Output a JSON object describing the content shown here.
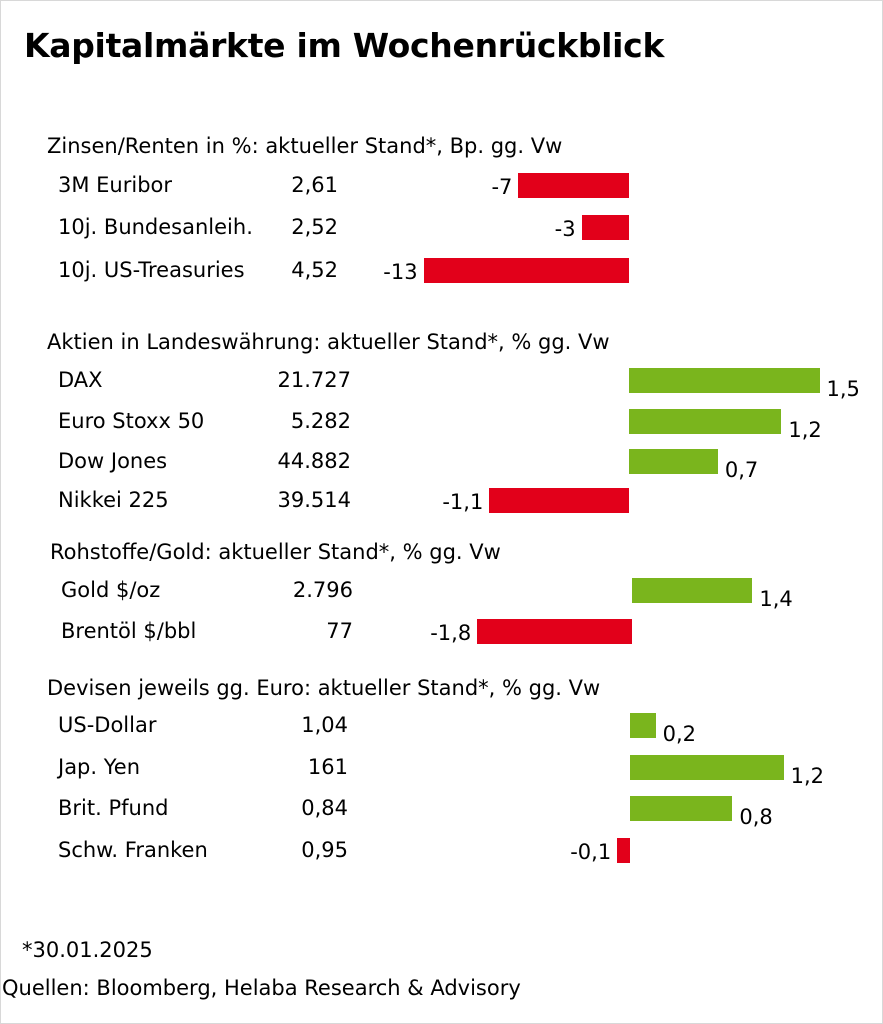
{
  "title": "Kapitalmärkte im Wochenrückblick",
  "colors": {
    "positive": "#7ab51d",
    "negative": "#e2001a"
  },
  "chart_data": {
    "type": "bar",
    "orientation": "horizontal",
    "sections": [
      {
        "title": "Zinsen/Renten in %: aktueller Stand*, Bp. gg. Vw",
        "rows": [
          {
            "label": "3M Euribor",
            "level": "2,61",
            "change": -7,
            "change_label": "-7"
          },
          {
            "label": "10j. Bundesanleih.",
            "level": "2,52",
            "change": -3,
            "change_label": "-3"
          },
          {
            "label": "10j. US-Treasuries",
            "level": "4,52",
            "change": -13,
            "change_label": "-13"
          }
        ]
      },
      {
        "title": "Aktien in Landeswährung: aktueller Stand*, % gg. Vw",
        "rows": [
          {
            "label": "DAX",
            "level": "21.727",
            "change": 1.5,
            "change_label": "1,5"
          },
          {
            "label": "Euro Stoxx 50",
            "level": "5.282",
            "change": 1.2,
            "change_label": "1,2"
          },
          {
            "label": "Dow Jones",
            "level": "44.882",
            "change": 0.7,
            "change_label": "0,7"
          },
          {
            "label": "Nikkei 225",
            "level": "39.514",
            "change": -1.1,
            "change_label": "-1,1"
          }
        ]
      },
      {
        "title": "Rohstoffe/Gold: aktueller Stand*, % gg. Vw",
        "rows": [
          {
            "label": "Gold $/oz",
            "level": "2.796",
            "change": 1.4,
            "change_label": "1,4"
          },
          {
            "label": "Brentöl $/bbl",
            "level": "77",
            "change": -1.8,
            "change_label": "-1,8"
          }
        ]
      },
      {
        "title": "Devisen jeweils gg. Euro: aktueller Stand*, % gg. Vw",
        "rows": [
          {
            "label": "US-Dollar",
            "level": "1,04",
            "change": 0.2,
            "change_label": "0,2"
          },
          {
            "label": "Jap. Yen",
            "level": "161",
            "change": 1.2,
            "change_label": "1,2"
          },
          {
            "label": "Brit. Pfund",
            "level": "0,84",
            "change": 0.8,
            "change_label": "0,8"
          },
          {
            "label": "Schw. Franken",
            "level": "0,95",
            "change": -0.1,
            "change_label": "-0,1"
          }
        ]
      }
    ]
  },
  "footnotes": {
    "date": "*30.01.2025",
    "source": "Quellen: Bloomberg, Helaba Research & Advisory"
  }
}
